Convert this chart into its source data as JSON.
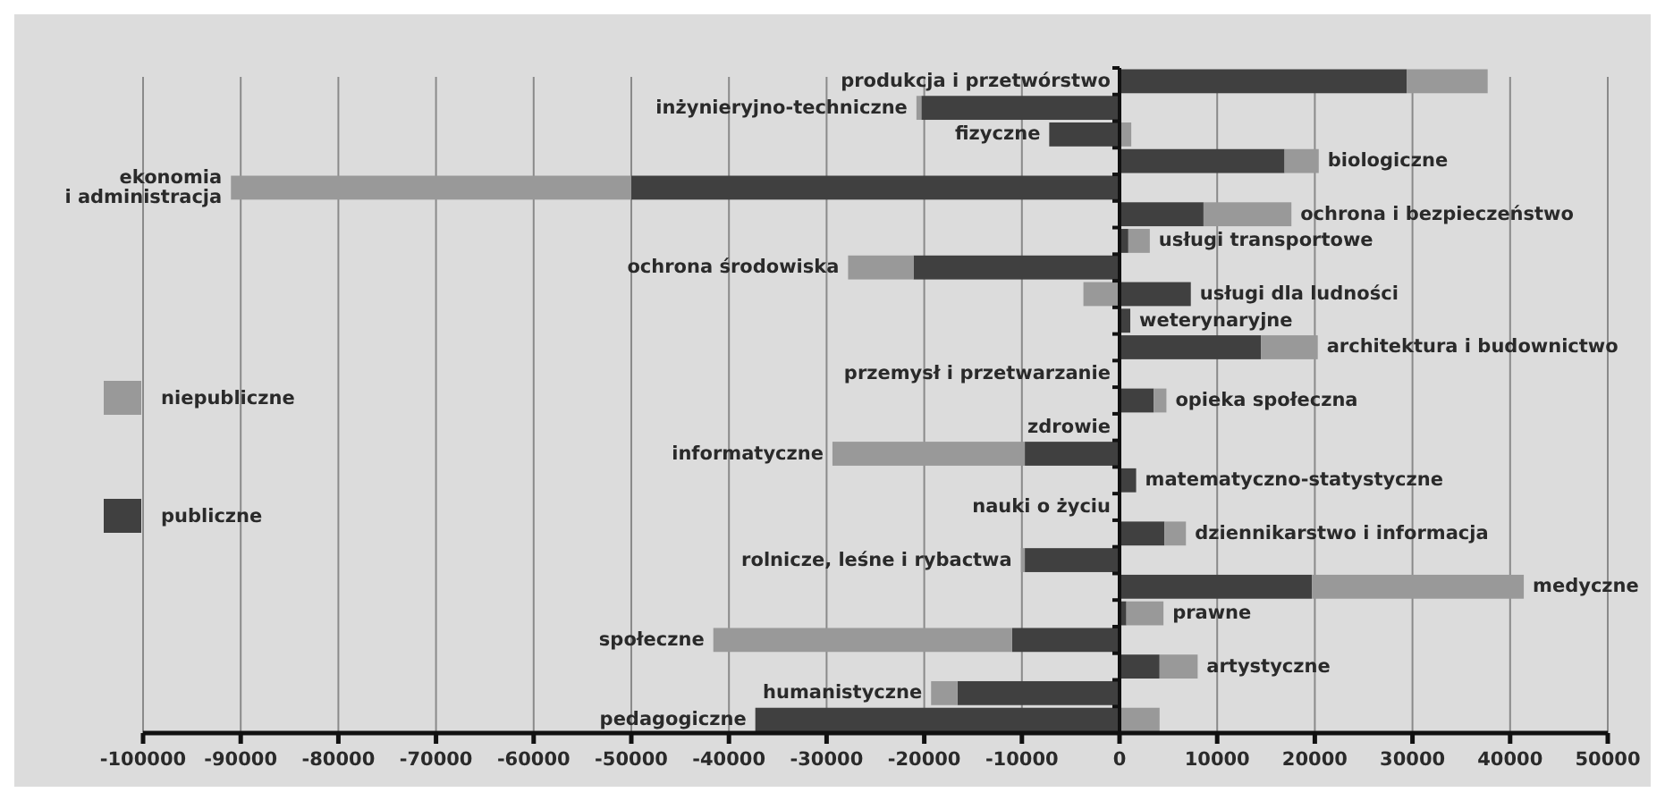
{
  "chart_data": {
    "type": "bar",
    "orientation": "horizontal",
    "stacked": true,
    "legend": "left",
    "grid": "x",
    "categories": [
      "produkcja i przetwórstwo",
      "inżynieryjno-techniczne",
      "fizyczne",
      "biologiczne",
      "ekonomia\ni administracja",
      "ochrona i bezpieczeństwo",
      "usługi transportowe",
      "ochrona środowiska",
      "usługi dla ludności",
      "weterynaryjne",
      "architektura i budownictwo",
      "przemysł i przetwarzanie",
      "opieka społeczna",
      "zdrowie",
      "informatyczne",
      "matematyczno-statystyczne",
      "nauki o życiu",
      "dziennikarstwo i informacja",
      "rolnicze, leśne i rybactwa",
      "medyczne",
      "prawne",
      "społeczne",
      "artystyczne",
      "humanistyczne",
      "pedagogiczne"
    ],
    "series": [
      {
        "name": "publiczne",
        "color": "#404040",
        "values": [
          29400,
          -20300,
          -7200,
          16900,
          -50000,
          8600,
          900,
          -21100,
          7300,
          1100,
          14500,
          null,
          3500,
          null,
          -9700,
          1700,
          null,
          4600,
          -9700,
          19700,
          700,
          -11000,
          4100,
          -16600,
          -37300
        ]
      },
      {
        "name": "niepubliczne",
        "color": "#999999",
        "values": [
          8300,
          -500,
          1200,
          3500,
          -41000,
          9000,
          2200,
          -6700,
          -3700,
          null,
          5800,
          null,
          1300,
          null,
          -19700,
          null,
          null,
          2200,
          -400,
          21700,
          3800,
          -30600,
          3900,
          -2700,
          4100
        ]
      }
    ],
    "xlim": [
      -100000,
      50000
    ],
    "xticks": [
      -100000,
      -90000,
      -80000,
      -70000,
      -60000,
      -50000,
      -40000,
      -30000,
      -20000,
      -10000,
      0,
      10000,
      20000,
      30000,
      40000,
      50000
    ]
  }
}
